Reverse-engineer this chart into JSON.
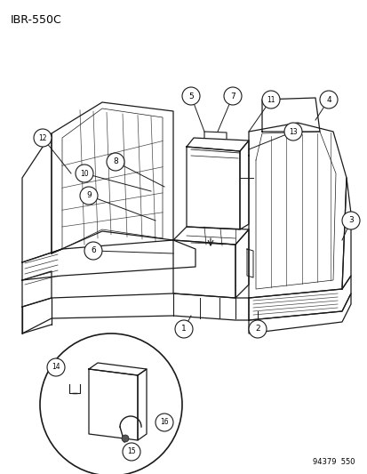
{
  "title": "IBR-550C",
  "footer": "94379  550",
  "bg_color": "#ffffff",
  "text_color": "#000000",
  "line_color": "#1a1a1a",
  "figsize": [
    4.14,
    5.33
  ],
  "dpi": 100
}
